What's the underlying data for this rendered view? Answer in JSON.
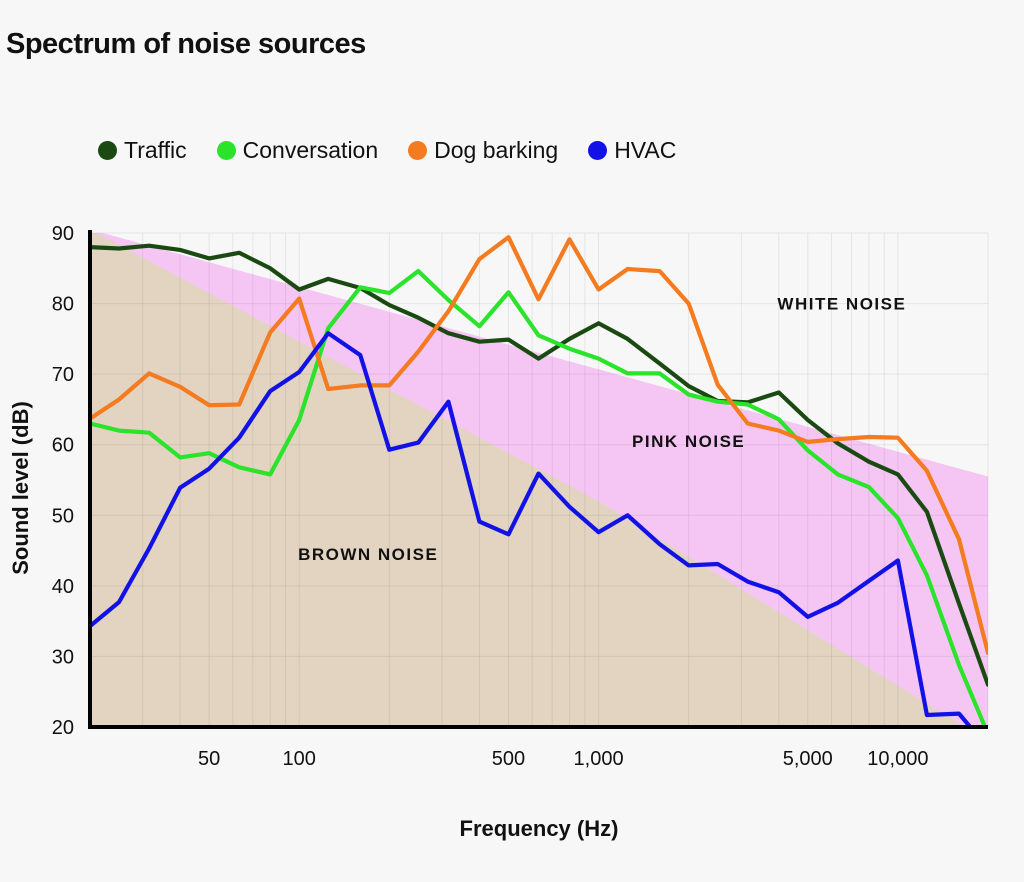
{
  "chart_data": {
    "type": "line",
    "title": "Spectrum of noise sources",
    "xlabel": "Frequency (Hz)",
    "ylabel": "Sound level (dB)",
    "x_scale": "log",
    "xlim": [
      20,
      20000
    ],
    "ylim": [
      20,
      90
    ],
    "x_ticks": [
      50,
      100,
      500,
      1000,
      5000,
      10000
    ],
    "x_tick_labels": [
      "50",
      "100",
      "500",
      "1,000",
      "5,000",
      "10,000"
    ],
    "y_ticks": [
      20,
      30,
      40,
      50,
      60,
      70,
      80,
      90
    ],
    "y_tick_labels": [
      "20",
      "30",
      "40",
      "50",
      "60",
      "70",
      "80",
      "90"
    ],
    "grid": true,
    "legend_position": "top",
    "regions": [
      {
        "name": "WHITE NOISE",
        "color": "#f7f7f7",
        "label_at": [
          6500,
          80
        ]
      },
      {
        "name": "PINK NOISE",
        "color": "#f5c6f4",
        "upper": [
          [
            20,
            90.5
          ],
          [
            20000,
            55.5
          ]
        ],
        "label_at": [
          2000,
          60.5
        ]
      },
      {
        "name": "BROWN NOISE",
        "color": "#e2d4c1",
        "upper": [
          [
            20,
            90.5
          ],
          [
            1000,
            52
          ],
          [
            20000,
            18
          ]
        ],
        "label_at": [
          170,
          44.5
        ]
      }
    ],
    "series": [
      {
        "name": "Traffic",
        "color": "#1a4a12",
        "x": [
          20,
          25,
          31.5,
          40,
          50,
          63,
          80,
          100,
          125,
          160,
          200,
          250,
          315,
          400,
          500,
          630,
          800,
          1000,
          1250,
          1600,
          2000,
          2500,
          3150,
          4000,
          5000,
          6300,
          8000,
          10000,
          12500,
          16000,
          20000
        ],
        "y": [
          88,
          87.8,
          88.2,
          87.6,
          86.4,
          87.2,
          85,
          82,
          83.5,
          82.2,
          79.8,
          78,
          75.8,
          74.6,
          74.9,
          72.2,
          75,
          77.2,
          75,
          71.5,
          68.3,
          66.2,
          66,
          67.4,
          63.5,
          60.2,
          57.6,
          55.8,
          50.5,
          37.5,
          26
        ]
      },
      {
        "name": "Conversation",
        "color": "#2ae32a",
        "x": [
          20,
          25,
          31.5,
          40,
          50,
          63,
          80,
          100,
          125,
          160,
          200,
          250,
          315,
          400,
          500,
          630,
          800,
          1000,
          1250,
          1600,
          2000,
          2500,
          3150,
          4000,
          5000,
          6300,
          8000,
          10000,
          12500,
          16000,
          20000
        ],
        "y": [
          63,
          62,
          61.7,
          58.2,
          58.8,
          56.8,
          55.8,
          63.5,
          76.5,
          82.3,
          81.5,
          84.6,
          80.5,
          76.8,
          81.6,
          75.5,
          73.6,
          72.2,
          70.1,
          70.1,
          67.1,
          66.1,
          65.7,
          63.6,
          59.2,
          55.8,
          54,
          49.6,
          41.5,
          28.8,
          19
        ]
      },
      {
        "name": "Dog barking",
        "color": "#f47b1f",
        "x": [
          20,
          25,
          31.5,
          40,
          50,
          63,
          80,
          100,
          125,
          160,
          200,
          250,
          315,
          400,
          500,
          630,
          800,
          1000,
          1250,
          1600,
          2000,
          2500,
          3150,
          4000,
          5000,
          6300,
          8000,
          10000,
          12500,
          16000,
          20000
        ],
        "y": [
          63.7,
          66.4,
          70.1,
          68.2,
          65.6,
          65.7,
          75.9,
          80.7,
          67.9,
          68.4,
          68.4,
          73.2,
          78.9,
          86.3,
          89.4,
          80.6,
          89.1,
          82,
          84.9,
          84.6,
          80,
          68.5,
          63,
          62,
          60.4,
          60.8,
          61.1,
          61,
          56.3,
          46.6,
          30.5
        ]
      },
      {
        "name": "HVAC",
        "color": "#1212e6",
        "x": [
          20,
          25,
          31.5,
          40,
          50,
          63,
          80,
          100,
          125,
          160,
          200,
          250,
          315,
          400,
          500,
          630,
          800,
          1000,
          1250,
          1600,
          2000,
          2500,
          3150,
          4000,
          5000,
          6300,
          8000,
          10000,
          12500,
          16000,
          20000
        ],
        "y": [
          34.3,
          37.7,
          45.3,
          53.9,
          56.6,
          61,
          67.6,
          70.3,
          75.8,
          72.7,
          59.3,
          60.3,
          66.1,
          49.1,
          47.3,
          55.9,
          51.2,
          47.6,
          50,
          45.9,
          42.9,
          43.1,
          40.6,
          39.1,
          35.6,
          37.6,
          40.7,
          43.6,
          21.7,
          21.9,
          17
        ]
      }
    ]
  }
}
